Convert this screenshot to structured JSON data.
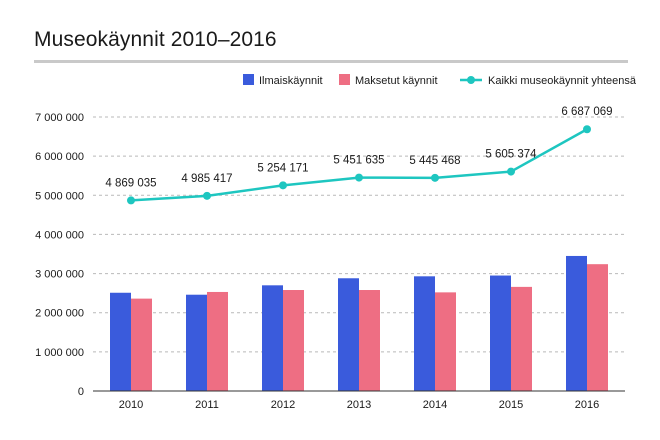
{
  "title": "Museokäynnit 2010–2016",
  "colors": {
    "free": "#3a5bdc",
    "paid": "#ee6e83",
    "total": "#1ec6c0",
    "grid": "#b9b9b9",
    "rule": "#c9c9c9"
  },
  "chart_data": {
    "type": "bar",
    "title": "Museokäynnit 2010–2016",
    "xlabel": "",
    "ylabel": "",
    "categories": [
      "2010",
      "2011",
      "2012",
      "2013",
      "2014",
      "2015",
      "2016"
    ],
    "ylim": [
      0,
      7000000
    ],
    "yticks": [
      0,
      1000000,
      2000000,
      3000000,
      4000000,
      5000000,
      6000000,
      7000000
    ],
    "ytick_labels": [
      "0",
      "1 000 000",
      "2 000 000",
      "3 000 000",
      "4 000 000",
      "5 000 000",
      "6 000 000",
      "7 000 000"
    ],
    "grid": "horizontal-dashed",
    "legend_position": "top-right",
    "series": [
      {
        "name": "Ilmaiskäynnit",
        "type": "bar",
        "values": [
          2510000,
          2460000,
          2700000,
          2880000,
          2930000,
          2950000,
          3450000
        ]
      },
      {
        "name": "Maksetut käynnit",
        "type": "bar",
        "values": [
          2360000,
          2530000,
          2580000,
          2580000,
          2520000,
          2660000,
          3240000
        ]
      },
      {
        "name": "Kaikki museokäynnit yhteensä",
        "type": "line",
        "values": [
          4869035,
          4985417,
          5254171,
          5451635,
          5445468,
          5605374,
          6687069
        ],
        "labels": [
          "4 869 035",
          "4 985 417",
          "5 254 171",
          "5 451 635",
          "5 445 468",
          "5 605 374",
          "6 687 069"
        ]
      }
    ]
  }
}
